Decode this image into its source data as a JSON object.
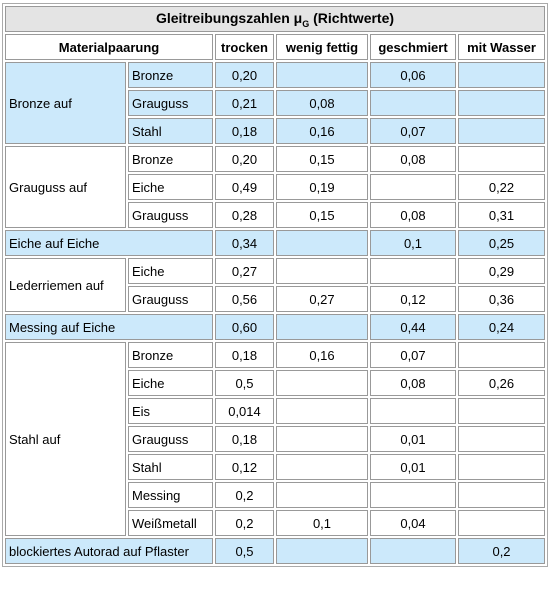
{
  "table": {
    "title": {
      "text": "Gleitreibungszahlen μ",
      "subscript": "G",
      "suffix": "(Richtwerte)"
    },
    "header": [
      "Materialpaarung",
      "trocken",
      "wenig fettig",
      "geschmiert",
      "mit Wasser"
    ],
    "groups": [
      {
        "label": "Bronze auf",
        "rows": [
          {
            "material": "Bronze",
            "values": [
              "0,20",
              null,
              "0,06",
              null
            ]
          },
          {
            "material": "Grauguss",
            "values": [
              "0,21",
              "0,08",
              null,
              null
            ]
          },
          {
            "material": "Stahl",
            "values": [
              "0,18",
              "0,16",
              "0,07",
              null
            ]
          }
        ]
      },
      {
        "label": "Grauguss auf",
        "rows": [
          {
            "material": "Bronze",
            "values": [
              "0,20",
              "0,15",
              "0,08",
              null
            ]
          },
          {
            "material": "Eiche",
            "values": [
              "0,49",
              "0,19",
              null,
              "0,22"
            ]
          },
          {
            "material": "Grauguss",
            "values": [
              "0,28",
              "0,15",
              "0,08",
              "0,31"
            ]
          }
        ]
      },
      {
        "label": "Eiche auf Eiche",
        "rows": [
          {
            "values": [
              "0,34",
              null,
              "0,1",
              "0,25"
            ]
          }
        ]
      },
      {
        "label": "Lederriemen auf",
        "rows": [
          {
            "material": "Eiche",
            "values": [
              "0,27",
              null,
              null,
              "0,29"
            ]
          },
          {
            "material": "Grauguss",
            "values": [
              "0,56",
              "0,27",
              "0,12",
              "0,36"
            ]
          }
        ]
      },
      {
        "label": "Messing auf Eiche",
        "rows": [
          {
            "values": [
              "0,60",
              null,
              "0,44",
              "0,24"
            ]
          }
        ]
      },
      {
        "label": "Stahl auf",
        "rows": [
          {
            "material": "Bronze",
            "values": [
              "0,18",
              "0,16",
              "0,07",
              null
            ]
          },
          {
            "material": "Eiche",
            "values": [
              "0,5",
              null,
              "0,08",
              "0,26"
            ]
          },
          {
            "material": "Eis",
            "values": [
              "0,014",
              null,
              null,
              null
            ]
          },
          {
            "material": "Grauguss",
            "values": [
              "0,18",
              null,
              "0,01",
              null
            ]
          },
          {
            "material": "Stahl",
            "values": [
              "0,12",
              null,
              "0,01",
              null
            ]
          },
          {
            "material": "Messing",
            "values": [
              "0,2",
              null,
              null,
              null
            ]
          },
          {
            "material": "Weißmetall",
            "values": [
              "0,2",
              "0,1",
              "0,04",
              null
            ]
          }
        ]
      },
      {
        "label": "blockiertes Autorad auf Pflaster",
        "rows": [
          {
            "values": [
              "0,5",
              null,
              null,
              "0,2"
            ]
          }
        ]
      }
    ]
  }
}
